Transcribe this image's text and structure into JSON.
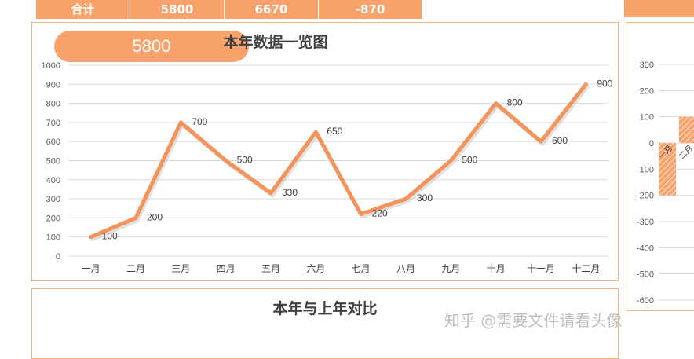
{
  "totals": {
    "label": "合计",
    "this_year": "5800",
    "last_year": "6670",
    "difference": "-870"
  },
  "main_panel": {
    "total_badge": "5800",
    "title": "本年数据一览图"
  },
  "compare_panel": {
    "title": "本年与上年对比"
  },
  "watermark": "知乎 @需要文件请看头像",
  "colors": {
    "accent": "#f9a26c",
    "line": "#f4935a",
    "border": "#f4b183",
    "grid": "#d9d9d9"
  },
  "chart_data": [
    {
      "type": "line",
      "title": "本年数据一览图",
      "categories": [
        "一月",
        "二月",
        "三月",
        "四月",
        "五月",
        "六月",
        "七月",
        "八月",
        "九月",
        "十月",
        "十一月",
        "十二月"
      ],
      "values": [
        100,
        200,
        700,
        500,
        330,
        650,
        220,
        300,
        500,
        800,
        600,
        900
      ],
      "data_labels": [
        "100",
        "200",
        "700",
        "500",
        "330",
        "650",
        "220",
        "300",
        "500",
        "800",
        "600",
        "900"
      ],
      "ylim": [
        0,
        1000
      ],
      "y_ticks": [
        "0",
        "100",
        "200",
        "300",
        "400",
        "500",
        "600",
        "700",
        "800",
        "900",
        "1000"
      ],
      "grid": true,
      "xlabel": "",
      "ylabel": ""
    },
    {
      "type": "bar",
      "ylim": [
        -600,
        300
      ],
      "y_ticks": [
        "300",
        "200",
        "100",
        "0",
        "-100",
        "-200",
        "-300",
        "-400",
        "-500",
        "-600"
      ],
      "categories": [
        "一月",
        "二月"
      ],
      "values": [
        -200,
        100
      ],
      "grid": true
    }
  ]
}
